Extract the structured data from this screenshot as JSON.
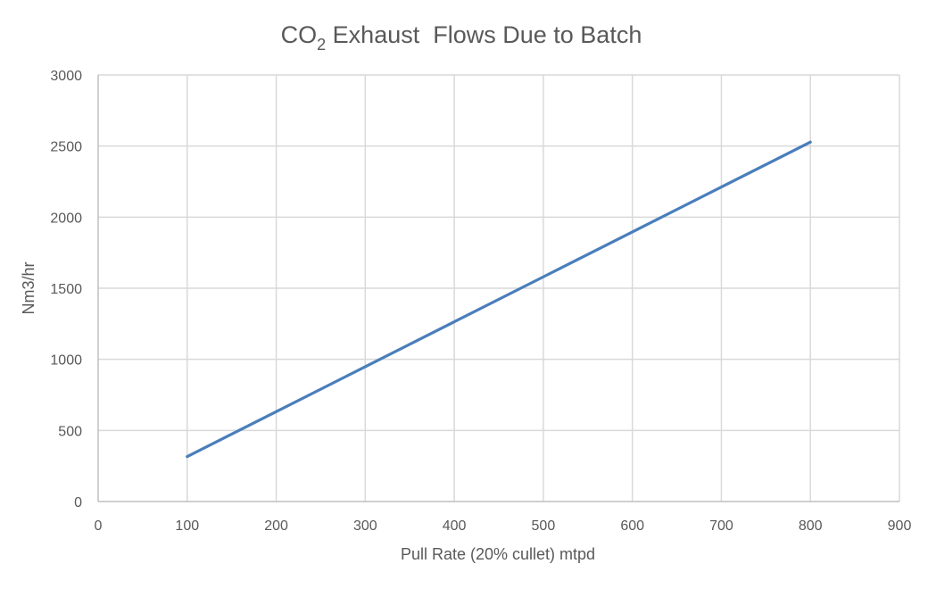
{
  "chart_data": {
    "type": "line",
    "title": {
      "prefix": "CO",
      "subscript": "2",
      "rest": " Exhaust  Flows Due to Batch"
    },
    "xlabel": "Pull Rate (20% cullet) mtpd",
    "ylabel": "Nm3/hr",
    "xlim": [
      0,
      900
    ],
    "ylim": [
      0,
      3000
    ],
    "x_ticks": [
      0,
      100,
      200,
      300,
      400,
      500,
      600,
      700,
      800,
      900
    ],
    "y_ticks": [
      0,
      500,
      1000,
      1500,
      2000,
      2500,
      3000
    ],
    "grid": true,
    "legend": "none",
    "series": [
      {
        "color": "#4a7ebb",
        "x": [
          100,
          200,
          300,
          400,
          500,
          600,
          700,
          800
        ],
        "y": [
          316,
          632,
          948,
          1264,
          1580,
          1896,
          2212,
          2528
        ]
      }
    ]
  }
}
